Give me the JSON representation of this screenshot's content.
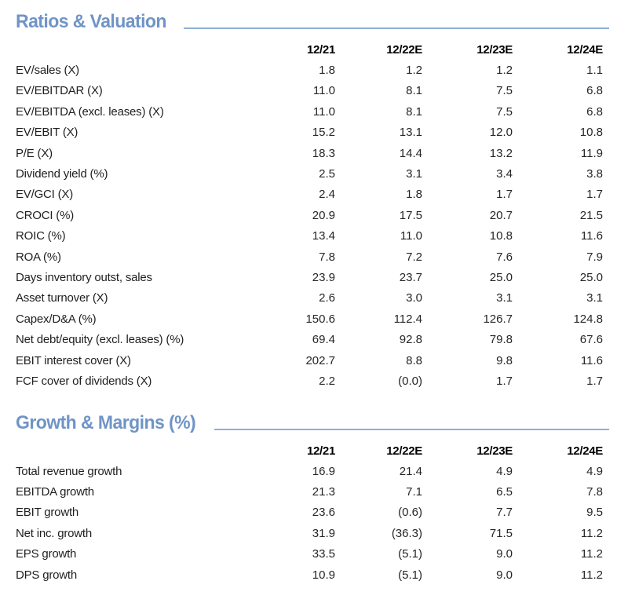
{
  "styles": {
    "accent_blue": "#7094c6",
    "rule_blue": "#8fafd6",
    "header_text": "#000000",
    "body_text": "#262626",
    "background": "#ffffff"
  },
  "sections": [
    {
      "title": "Ratios & Valuation",
      "columns": [
        "12/21",
        "12/22E",
        "12/23E",
        "12/24E"
      ],
      "rows": [
        {
          "label": "EV/sales (X)",
          "values": [
            "1.8",
            "1.2",
            "1.2",
            "1.1"
          ]
        },
        {
          "label": "EV/EBITDAR (X)",
          "values": [
            "11.0",
            "8.1",
            "7.5",
            "6.8"
          ]
        },
        {
          "label": "EV/EBITDA (excl. leases) (X)",
          "values": [
            "11.0",
            "8.1",
            "7.5",
            "6.8"
          ]
        },
        {
          "label": "EV/EBIT (X)",
          "values": [
            "15.2",
            "13.1",
            "12.0",
            "10.8"
          ]
        },
        {
          "label": "P/E (X)",
          "values": [
            "18.3",
            "14.4",
            "13.2",
            "11.9"
          ]
        },
        {
          "label": "Dividend yield (%)",
          "values": [
            "2.5",
            "3.1",
            "3.4",
            "3.8"
          ]
        },
        {
          "label": "EV/GCI (X)",
          "values": [
            "2.4",
            "1.8",
            "1.7",
            "1.7"
          ]
        },
        {
          "label": "CROCI (%)",
          "values": [
            "20.9",
            "17.5",
            "20.7",
            "21.5"
          ]
        },
        {
          "label": "ROIC (%)",
          "values": [
            "13.4",
            "11.0",
            "10.8",
            "11.6"
          ]
        },
        {
          "label": "ROA (%)",
          "values": [
            "7.8",
            "7.2",
            "7.6",
            "7.9"
          ]
        },
        {
          "label": "Days inventory outst, sales",
          "values": [
            "23.9",
            "23.7",
            "25.0",
            "25.0"
          ]
        },
        {
          "label": "Asset turnover (X)",
          "values": [
            "2.6",
            "3.0",
            "3.1",
            "3.1"
          ]
        },
        {
          "label": "Capex/D&A (%)",
          "values": [
            "150.6",
            "112.4",
            "126.7",
            "124.8"
          ]
        },
        {
          "label": "Net debt/equity (excl. leases) (%)",
          "values": [
            "69.4",
            "92.8",
            "79.8",
            "67.6"
          ]
        },
        {
          "label": "EBIT interest cover (X)",
          "values": [
            "202.7",
            "8.8",
            "9.8",
            "11.6"
          ]
        },
        {
          "label": "FCF cover of dividends (X)",
          "values": [
            "2.2",
            "(0.0)",
            "1.7",
            "1.7"
          ]
        }
      ]
    },
    {
      "title": "Growth & Margins (%)",
      "columns": [
        "12/21",
        "12/22E",
        "12/23E",
        "12/24E"
      ],
      "rows": [
        {
          "label": "Total revenue growth",
          "values": [
            "16.9",
            "21.4",
            "4.9",
            "4.9"
          ]
        },
        {
          "label": "EBITDA growth",
          "values": [
            "21.3",
            "7.1",
            "6.5",
            "7.8"
          ]
        },
        {
          "label": "EBIT growth",
          "values": [
            "23.6",
            "(0.6)",
            "7.7",
            "9.5"
          ]
        },
        {
          "label": "Net inc. growth",
          "values": [
            "31.9",
            "(36.3)",
            "71.5",
            "11.2"
          ]
        },
        {
          "label": "EPS growth",
          "values": [
            "33.5",
            "(5.1)",
            "9.0",
            "11.2"
          ]
        },
        {
          "label": "DPS growth",
          "values": [
            "10.9",
            "(5.1)",
            "9.0",
            "11.2"
          ]
        }
      ]
    }
  ]
}
